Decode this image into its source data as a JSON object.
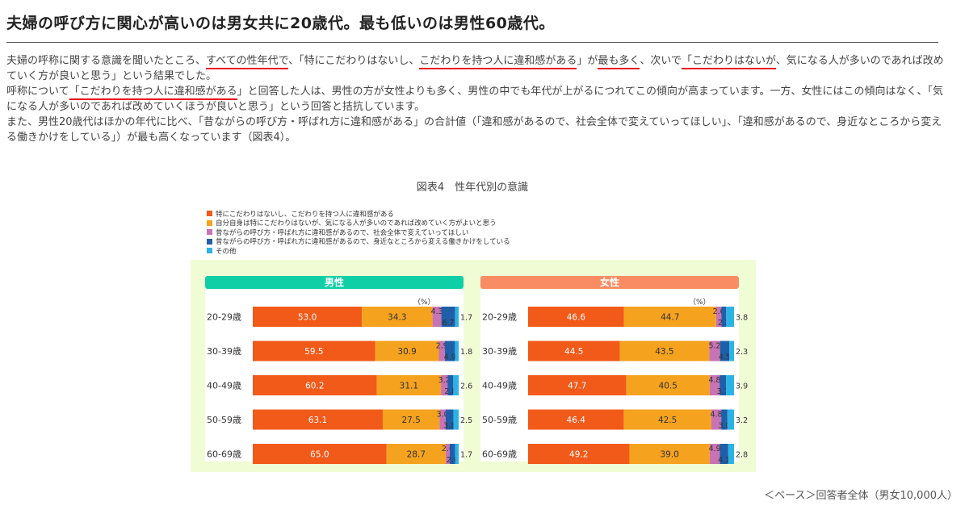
{
  "page": {
    "headline": "夫婦の呼び方に関心が高いのは男女共に20歳代。最も低いのは男性60歳代。",
    "paragraph_1": [
      {
        "text": "夫婦の呼称に関する意識を聞いたところ、",
        "u": false
      },
      {
        "text": "すべての性年代で",
        "u": true
      },
      {
        "text": "、「特にこだわりはないし、",
        "u": false
      },
      {
        "text": "こだわりを持つ人に違和感がある",
        "u": true
      },
      {
        "text": "」が",
        "u": false
      },
      {
        "text": "最も多く",
        "u": true
      },
      {
        "text": "、次いで",
        "u": false
      },
      {
        "text": "「こだわりはないが",
        "u": true
      },
      {
        "text": "、気になる人が多いのであれば改めていく方が良いと思う」という結果でした。",
        "u": false
      }
    ],
    "paragraph_2": [
      {
        "text": "呼称について",
        "u": false
      },
      {
        "text": "「こだわりを持つ人に違和感がある",
        "u": true
      },
      {
        "text": "」と回答した人は、男性の方が女性よりも多く、男性の中でも年代が上がるにつれてこの傾向が高まっています。一方、女性にはこの傾向はなく、「気になる人が多いのであれば改めていくほうが良いと思う」という回答と拮抗しています。",
        "u": false
      }
    ],
    "paragraph_3": "また、男性20歳代はほかの年代に比べ、「昔ながらの呼び方・呼ばれ方に違和感がある」の合計値（「違和感があるので、社会全体で変えていってほしい」、「違和感があるので、身近なところから変える働きかけをしている」）が最も高くなっています（図表4）。",
    "chart_title": "図表4　性年代別の意識",
    "source_note": "＜ベース＞回答者全体（男女10,000人）",
    "underline_color": "#e8141e"
  },
  "chart_data": {
    "type": "bar",
    "stacked": true,
    "orientation": "horizontal",
    "unit_label": "（%）",
    "categories": [
      "20-29歳",
      "30-39歳",
      "40-49歳",
      "50-59歳",
      "60-69歳"
    ],
    "legend": [
      {
        "name": "特にこだわりはないし、こだわりを持つ人に違和感がある",
        "color": "#f25a1a"
      },
      {
        "name": "自分自身は特にこだわりはないが、気になる人が多いのであれば改めていく方がよいと思う",
        "color": "#f5a21f"
      },
      {
        "name": "昔ながらの呼び方・呼ばれ方に違和感があるので、社会全体で変えていってほしい",
        "color": "#c873b4"
      },
      {
        "name": "昔ながらの呼び方・呼ばれ方に違和感があるので、身近なところから変える働きかけをしている",
        "color": "#1f5fa8"
      },
      {
        "name": "その他",
        "color": "#2cb3e6"
      }
    ],
    "panels": [
      {
        "name": "男性",
        "header_color": "#0fcfa6",
        "rows": [
          [
            53.0,
            34.3,
            4.3,
            6.7,
            1.7
          ],
          [
            59.5,
            30.9,
            2.9,
            4.9,
            1.8
          ],
          [
            60.2,
            31.1,
            3.2,
            2.8,
            2.6
          ],
          [
            63.1,
            27.5,
            3.0,
            3.8,
            2.5
          ],
          [
            65.0,
            28.7,
            2.0,
            2.6,
            1.7
          ]
        ],
        "labels": [
          [
            "53.0",
            "34.3",
            "4.3",
            "6.7",
            "1.7"
          ],
          [
            "59.5",
            "30.9",
            "2.9",
            "4.9",
            "1.8"
          ],
          [
            "60.2",
            "31.1",
            "3.2",
            "2.8",
            "2.6"
          ],
          [
            "63.1",
            "27.5",
            "3.0",
            "3.8",
            "2.5"
          ],
          [
            "65.0",
            "28.7",
            "2.0",
            "2.6",
            "1.7"
          ]
        ]
      },
      {
        "name": "女性",
        "header_color": "#f98c62",
        "rows": [
          [
            46.6,
            44.7,
            2.6,
            2.3,
            3.8
          ],
          [
            44.5,
            43.5,
            5.2,
            4.5,
            2.3
          ],
          [
            47.7,
            40.5,
            4.8,
            3.1,
            3.9
          ],
          [
            46.4,
            42.5,
            4.8,
            3.0,
            3.2
          ],
          [
            49.2,
            39.0,
            4.9,
            4.1,
            2.8
          ]
        ],
        "labels": [
          [
            "46.6",
            "44.7",
            "2.6",
            "2.3",
            "3.8"
          ],
          [
            "44.5",
            "43.5",
            "5.2",
            "4.5",
            "2.3"
          ],
          [
            "47.7",
            "40.5",
            "4.8",
            "3.1",
            "3.9"
          ],
          [
            "46.4",
            "42.5",
            "4.8",
            "3.0",
            "3.2"
          ],
          [
            "49.2",
            "39.0",
            "4.9",
            "4.1",
            "2.8"
          ]
        ]
      }
    ]
  }
}
